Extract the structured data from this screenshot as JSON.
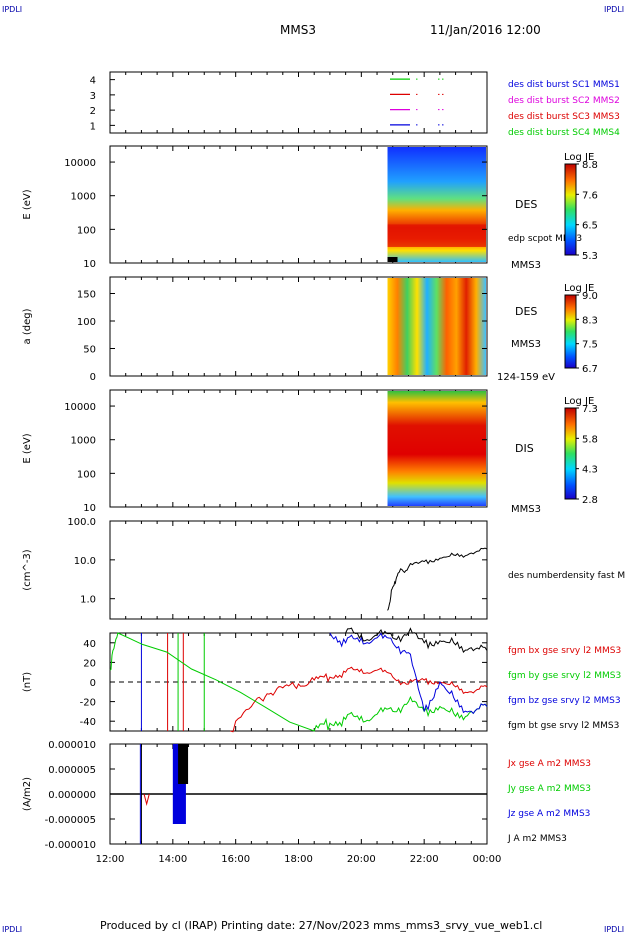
{
  "corner_label": "IPDLI",
  "spacecraft": "MMS3",
  "date": "11/Jan/2016 12:00",
  "footer": "Produced by cl (IRAP)   Printing date: 27/Nov/2023   mms_mms3_srvy_vue_web1.cl",
  "colors": {
    "black": "#000000",
    "red": "#dd0000",
    "green": "#00cc00",
    "blue": "#0000dd",
    "magenta": "#dd00dd"
  },
  "chart_data": [
    {
      "type": "line",
      "panel": "sc-availability",
      "ylim": [
        0.5,
        4.5
      ],
      "yticks": [
        "4",
        "3",
        "2",
        "1"
      ],
      "legend": [
        {
          "label": "des dist burst SC1 MMS1",
          "color": "#0000dd"
        },
        {
          "label": "des dist burst SC2 MMS2",
          "color": "#dd00dd"
        },
        {
          "label": "des dist burst SC3 MMS3",
          "color": "#dd0000"
        },
        {
          "label": "des dist burst SC4 MMS4",
          "color": "#00cc00"
        }
      ]
    },
    {
      "type": "heatmap",
      "panel": "des-energy-spectrogram",
      "ylabel": "E (eV)",
      "yscale": "log",
      "ylim": [
        10,
        30000
      ],
      "yticks": [
        "10000",
        "1000",
        "100",
        "10"
      ],
      "data_start": "20:50",
      "labels": [
        "DES",
        "edp scpot MMS3",
        "MMS3"
      ],
      "colorbar": {
        "title": "Log JE",
        "ticks": [
          "8.8",
          "7.6",
          "6.5",
          "5.3"
        ],
        "range": [
          5.3,
          8.8
        ]
      }
    },
    {
      "type": "heatmap",
      "panel": "des-pitch-angle",
      "ylabel": "a (deg)",
      "ylim": [
        0,
        180
      ],
      "yticks": [
        "150",
        "100",
        "50",
        "0"
      ],
      "data_start": "20:50",
      "labels": [
        "DES",
        "MMS3",
        "124-159 eV"
      ],
      "colorbar": {
        "title": "Log JE",
        "ticks": [
          "9.0",
          "8.3",
          "7.5",
          "6.7"
        ],
        "range": [
          6.7,
          9.0
        ]
      }
    },
    {
      "type": "heatmap",
      "panel": "dis-energy-spectrogram",
      "ylabel": "E (eV)",
      "yscale": "log",
      "ylim": [
        10,
        30000
      ],
      "yticks": [
        "10000",
        "1000",
        "100",
        "10"
      ],
      "data_start": "20:50",
      "labels": [
        "DIS",
        "MMS3"
      ],
      "colorbar": {
        "title": "Log JE",
        "ticks": [
          "7.3",
          "5.8",
          "4.3",
          "2.8"
        ],
        "range": [
          2.8,
          7.3
        ]
      }
    },
    {
      "type": "line",
      "panel": "density",
      "ylabel": "(cm^-3)",
      "yscale": "log",
      "ylim": [
        0.3,
        100
      ],
      "yticks": [
        "100.0",
        "10.0",
        "1.0"
      ],
      "series": [
        {
          "name": "des numberdensity fast M",
          "color": "#000000",
          "x": [
            "20:50",
            "21:00",
            "21:10",
            "21:30",
            "22:00",
            "22:30",
            "23:00",
            "23:30",
            "00:00"
          ],
          "y": [
            0.5,
            2.0,
            4.5,
            6.5,
            9.0,
            11.0,
            13.0,
            15.0,
            19.0
          ]
        }
      ]
    },
    {
      "type": "line",
      "panel": "magnetic-field",
      "ylabel": "(nT)",
      "ylim": [
        -50,
        50
      ],
      "yticks": [
        "40",
        "20",
        "0",
        "-20",
        "-40"
      ],
      "series": [
        {
          "name": "fgm bx gse srvy l2 MMS3",
          "color": "#dd0000",
          "x": [
            "15:50",
            "16:30",
            "17:00",
            "17:30",
            "18:00",
            "18:30",
            "19:00",
            "19:30",
            "20:00",
            "20:30",
            "21:00",
            "21:30",
            "22:00",
            "22:30",
            "23:00",
            "23:30",
            "00:00"
          ],
          "y": [
            -50,
            -25,
            -12,
            -6,
            -2,
            2,
            5,
            10,
            13,
            12,
            5,
            -2,
            2,
            0,
            -5,
            -10,
            -5
          ]
        },
        {
          "name": "fgm by gse srvy l2 MMS3",
          "color": "#00cc00",
          "x": [
            "12:00",
            "12:15",
            "18:30",
            "19:00",
            "19:30",
            "20:00",
            "20:30",
            "21:00",
            "21:30",
            "22:00",
            "22:30",
            "23:00",
            "23:30",
            "00:00"
          ],
          "y": [
            12,
            50,
            -50,
            -42,
            -38,
            -35,
            -33,
            -30,
            -20,
            -30,
            -25,
            -35,
            -30,
            -25
          ]
        },
        {
          "name": "fgm bz gse srvy l2 MMS3",
          "color": "#0000dd",
          "x": [
            "19:00",
            "19:30",
            "20:00",
            "20:30",
            "21:00",
            "21:30",
            "22:00",
            "22:30",
            "23:00",
            "23:30",
            "00:00"
          ],
          "y": [
            50,
            40,
            45,
            45,
            40,
            30,
            -30,
            0,
            -20,
            -30,
            -25
          ]
        },
        {
          "name": "fgm bt gse srvy l2 MMS3",
          "color": "#000000",
          "x": [
            "19:30",
            "20:00",
            "20:30",
            "21:00",
            "21:30",
            "22:00",
            "22:30",
            "23:00",
            "23:30",
            "00:00"
          ],
          "y": [
            50,
            48,
            48,
            45,
            50,
            40,
            42,
            38,
            35,
            32
          ]
        }
      ]
    },
    {
      "type": "line",
      "panel": "current-density",
      "ylabel": "(A/m2)",
      "ylim": [
        -0.0001,
        0.0001
      ],
      "yticks": [
        "0.000010",
        "0.000005",
        "0.000000",
        "-0.000005",
        "-0.000010"
      ],
      "xticks": [
        "12:00",
        "14:00",
        "16:00",
        "18:00",
        "20:00",
        "22:00",
        "00:00"
      ],
      "series": [
        {
          "name": "Jx gse A m2 MMS3",
          "color": "#dd0000"
        },
        {
          "name": "Jy gse A m2 MMS3",
          "color": "#00cc00"
        },
        {
          "name": "Jz gse A m2 MMS3",
          "color": "#0000dd"
        },
        {
          "name": "J A m2 MMS3",
          "color": "#000000"
        }
      ]
    }
  ]
}
